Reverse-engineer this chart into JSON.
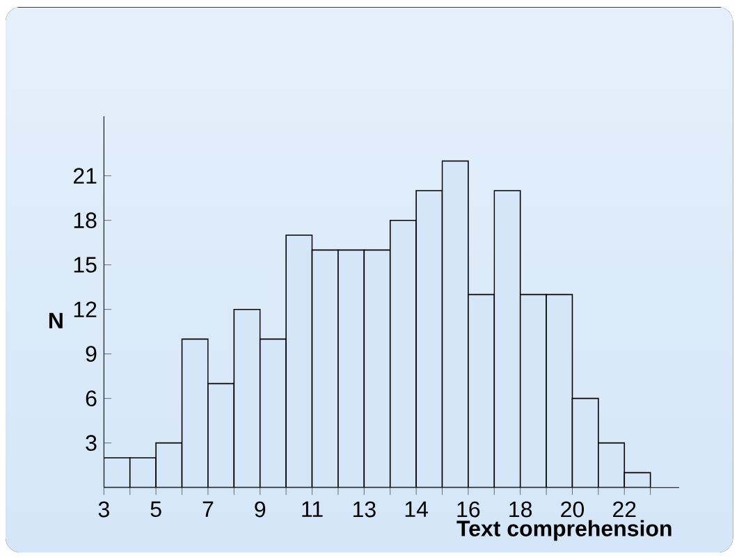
{
  "chart_data": {
    "type": "histogram",
    "xlabel": "Text comprehension",
    "ylabel": "N",
    "bins": [
      3,
      3.95,
      4.9,
      5.85,
      6.8,
      7.75,
      8.7,
      9.65,
      10.6,
      11.55,
      12.5,
      13.45,
      14.4,
      15.35,
      16.3,
      17.25,
      18.2,
      19.15,
      20.1,
      21.05,
      22,
      22.95
    ],
    "values": [
      2,
      2,
      3,
      10,
      7,
      12,
      10,
      17,
      16,
      16,
      16,
      18,
      20,
      22,
      13,
      20,
      13,
      13,
      6,
      3,
      1
    ],
    "color": "#d4e6f8",
    "xlim": [
      3,
      24
    ],
    "ylim": [
      0,
      25
    ],
    "xticks": [
      3,
      {
        "value": 3.95,
        "label": null
      },
      {
        "value": 4.9,
        "label": "5"
      },
      {
        "value": 5.85,
        "label": null
      },
      {
        "value": 6.8,
        "label": "7"
      },
      {
        "value": 7.75,
        "label": null
      },
      {
        "value": 8.7,
        "label": "9"
      },
      {
        "value": 9.65,
        "label": null
      },
      {
        "value": 10.6,
        "label": "11"
      },
      {
        "value": 11.55,
        "label": null
      },
      {
        "value": 12.5,
        "label": "13"
      },
      {
        "value": 13.45,
        "label": null
      },
      {
        "value": 14.4,
        "label": "14"
      },
      {
        "value": 15.35,
        "label": null
      },
      {
        "value": 16.3,
        "label": "16"
      },
      {
        "value": 17.25,
        "label": null
      },
      {
        "value": 18.2,
        "label": "18"
      },
      {
        "value": 19.15,
        "label": null
      },
      {
        "value": 20.1,
        "label": "20"
      },
      {
        "value": 21.05,
        "label": null
      },
      22,
      {
        "value": 22.95,
        "label": null
      }
    ],
    "yticks": [
      3,
      6,
      9,
      12,
      15,
      18,
      21
    ],
    "grid": false
  }
}
